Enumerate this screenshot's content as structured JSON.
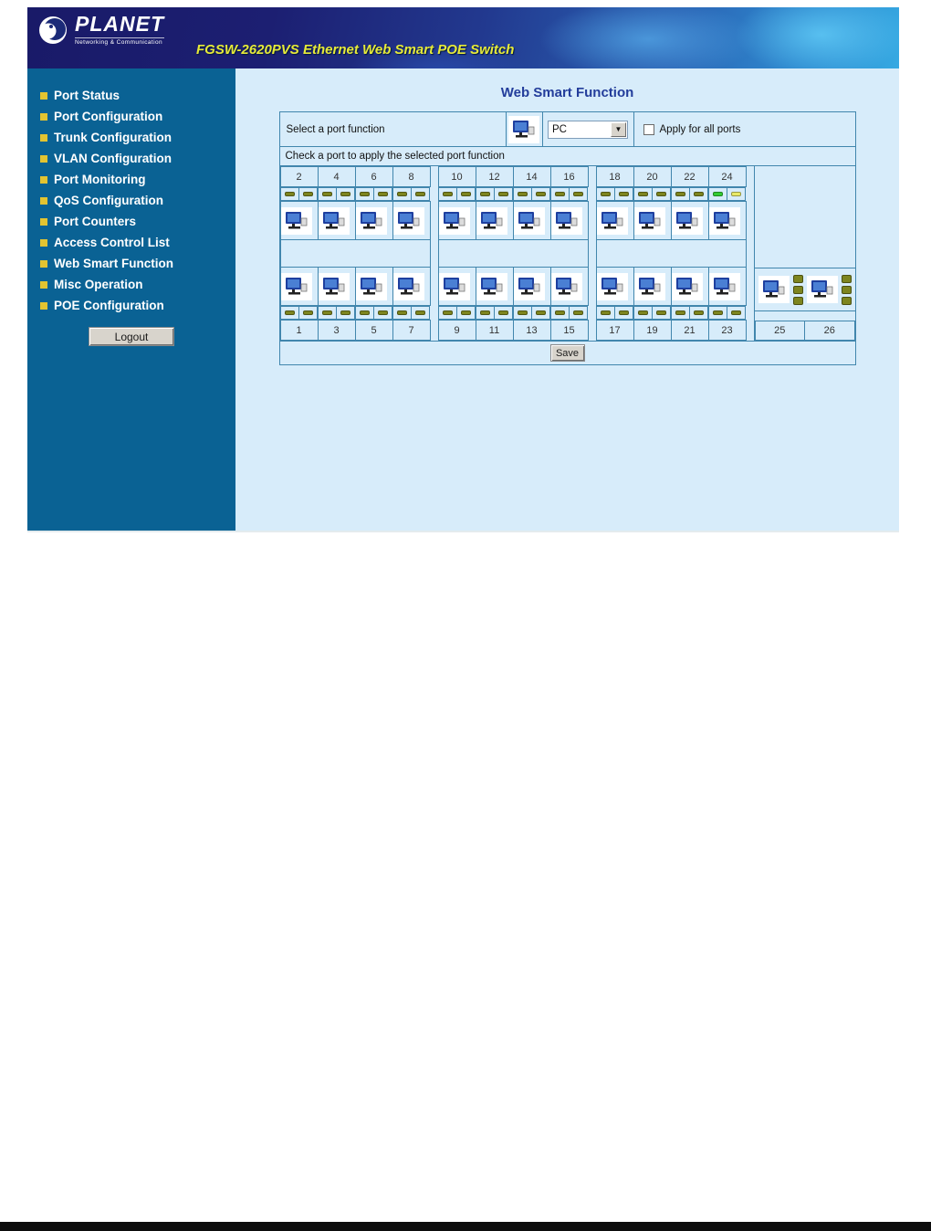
{
  "header": {
    "logo_brand": "PLANET",
    "logo_tagline": "Networking & Communication",
    "title": "FGSW-2620PVS Ethernet Web Smart POE Switch"
  },
  "sidebar": {
    "items": [
      "Port Status",
      "Port Configuration",
      "Trunk Configuration",
      "VLAN Configuration",
      "Port Monitoring",
      "QoS Configuration",
      "Port Counters",
      "Access Control List",
      "Web Smart Function",
      "Misc Operation",
      "POE Configuration"
    ],
    "logout_label": "Logout"
  },
  "main": {
    "page_title": "Web Smart Function",
    "function_row": {
      "label": "Select a port function",
      "icon": "pc-icon",
      "select_value": "PC",
      "apply_all_label": "Apply for all ports",
      "apply_all_checked": false
    },
    "instruction": "Check a port to apply the selected port function",
    "port_grid": {
      "top_groups": [
        [
          2,
          4,
          6,
          8
        ],
        [
          10,
          12,
          14,
          16
        ],
        [
          18,
          20,
          22,
          24
        ]
      ],
      "bottom_groups": [
        [
          1,
          3,
          5,
          7
        ],
        [
          9,
          11,
          13,
          15
        ],
        [
          17,
          19,
          21,
          23
        ]
      ],
      "uplink_ports": [
        25,
        26
      ],
      "leds_per_port": 2,
      "uplink_leds_per_port": 3,
      "led_default_color": "#7d851f",
      "led_overrides": {
        "24": [
          "#33cc33",
          "#e9ea68"
        ]
      }
    },
    "save_label": "Save"
  },
  "colors": {
    "header_navy": "#1a1a6b",
    "sidebar_bg": "#0a6294",
    "content_bg": "#d7ecfa",
    "panel_border": "#4186ad",
    "bullet_yellow": "#e3c431",
    "title_blue": "#233d9b"
  }
}
